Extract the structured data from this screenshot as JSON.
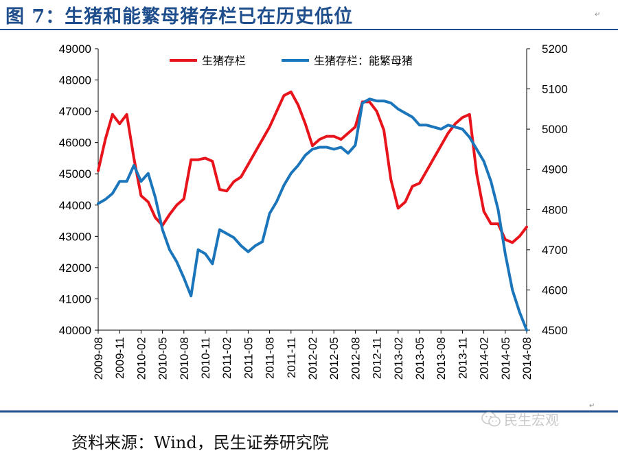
{
  "title": "图 7：生猪和能繁母猪存栏已在历史低位",
  "source_note": "资料来源：Wind，民生证券研究院",
  "watermark": "民生宏观",
  "colors": {
    "title": "#1f4e8c",
    "rule": "#1f4e8c",
    "series_red": "#e8141b",
    "series_blue": "#1b75bb"
  },
  "icons": {
    "watermark": "wechat-icon"
  },
  "chart_data": {
    "type": "line",
    "title": "",
    "xlabel": "",
    "ylabel": "",
    "grid": false,
    "legend_position": "top",
    "x": [
      "2009-08",
      "2009-09",
      "2009-10",
      "2009-11",
      "2009-12",
      "2010-01",
      "2010-02",
      "2010-03",
      "2010-04",
      "2010-05",
      "2010-06",
      "2010-07",
      "2010-08",
      "2010-09",
      "2010-10",
      "2010-11",
      "2010-12",
      "2011-01",
      "2011-02",
      "2011-03",
      "2011-04",
      "2011-05",
      "2011-06",
      "2011-07",
      "2011-08",
      "2011-09",
      "2011-10",
      "2011-11",
      "2011-12",
      "2012-01",
      "2012-02",
      "2012-03",
      "2012-04",
      "2012-05",
      "2012-06",
      "2012-07",
      "2012-08",
      "2012-09",
      "2012-10",
      "2012-11",
      "2012-12",
      "2013-01",
      "2013-02",
      "2013-03",
      "2013-04",
      "2013-05",
      "2013-06",
      "2013-07",
      "2013-08",
      "2013-09",
      "2013-10",
      "2013-11",
      "2013-12",
      "2014-01",
      "2014-02",
      "2014-03",
      "2014-04",
      "2014-05",
      "2014-06",
      "2014-07",
      "2014-08"
    ],
    "x_tick_labels": [
      "2009-08",
      "2009-11",
      "2010-02",
      "2010-05",
      "2010-08",
      "2010-11",
      "2011-02",
      "2011-05",
      "2011-08",
      "2011-11",
      "2012-02",
      "2012-05",
      "2012-08",
      "2012-11",
      "2013-02",
      "2013-05",
      "2013-08",
      "2013-11",
      "2014-02",
      "2014-05",
      "2014-08"
    ],
    "y_left": {
      "ylim": [
        40000,
        49000
      ],
      "ticks": [
        40000,
        41000,
        42000,
        43000,
        44000,
        45000,
        46000,
        47000,
        48000,
        49000
      ]
    },
    "y_right": {
      "ylim": [
        4500,
        5200
      ],
      "ticks": [
        4500,
        4600,
        4700,
        4800,
        4900,
        5000,
        5100,
        5200
      ]
    },
    "series": [
      {
        "name": "生猪存栏",
        "axis": "left",
        "color": "#e8141b",
        "values": [
          45100,
          46100,
          46900,
          46600,
          46900,
          45500,
          44300,
          44100,
          43600,
          43350,
          43700,
          44000,
          44200,
          45450,
          45450,
          45500,
          45400,
          44500,
          44450,
          44750,
          44900,
          45300,
          45700,
          46100,
          46500,
          47000,
          47500,
          47620,
          47200,
          46600,
          45900,
          46100,
          46200,
          46200,
          46100,
          46300,
          46500,
          47300,
          47300,
          47000,
          46400,
          44800,
          43900,
          44100,
          44600,
          44700,
          45100,
          45500,
          45900,
          46300,
          46600,
          46800,
          46900,
          45000,
          43800,
          43400,
          43400,
          42900,
          42800,
          43000,
          43300
        ]
      },
      {
        "name": "生猪存栏：能繁母猪",
        "axis": "right",
        "color": "#1b75bb",
        "values": [
          4815,
          4825,
          4840,
          4870,
          4870,
          4910,
          4870,
          4890,
          4830,
          4750,
          4700,
          4670,
          4630,
          4585,
          4700,
          4690,
          4665,
          4750,
          4740,
          4730,
          4710,
          4695,
          4710,
          4720,
          4790,
          4820,
          4860,
          4890,
          4910,
          4935,
          4950,
          4955,
          4955,
          4950,
          4955,
          4940,
          4960,
          5065,
          5075,
          5070,
          5070,
          5065,
          5050,
          5040,
          5030,
          5010,
          5010,
          5005,
          5000,
          5010,
          5005,
          5000,
          4980,
          4950,
          4920,
          4870,
          4800,
          4690,
          4600,
          4545,
          4500
        ]
      }
    ]
  }
}
